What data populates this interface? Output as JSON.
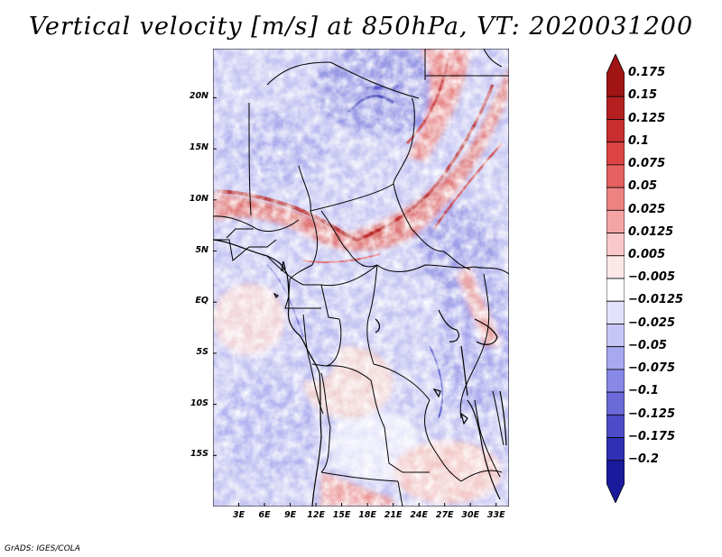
{
  "title": "Vertical velocity [m/s] at 850hPa, VT: 2020031200",
  "credit": "GrADS: IGES/COLA",
  "map": {
    "region": "Central Africa",
    "lat_labels": [
      "20N",
      "15N",
      "10N",
      "5N",
      "EQ",
      "5S",
      "10S",
      "15S"
    ],
    "lon_labels": [
      "3E",
      "6E",
      "9E",
      "12E",
      "15E",
      "18E",
      "21E",
      "24E",
      "27E",
      "30E",
      "33E"
    ],
    "lat_values": [
      20,
      15,
      10,
      5,
      0,
      -5,
      -10,
      -15
    ],
    "lon_values": [
      3,
      6,
      9,
      12,
      15,
      18,
      21,
      24,
      27,
      30,
      33
    ],
    "lat_range": [
      -20,
      24.8
    ],
    "lon_range": [
      0,
      34.5
    ]
  },
  "colorbar": {
    "labels": [
      "0.175",
      "0.15",
      "0.125",
      "0.1",
      "0.075",
      "0.05",
      "0.025",
      "0.0125",
      "0.005",
      "−0.005",
      "−0.0125",
      "−0.025",
      "−0.05",
      "−0.075",
      "−0.1",
      "−0.125",
      "−0.175",
      "−0.2"
    ],
    "colors": [
      "#a01414",
      "#b42020",
      "#c82e2e",
      "#dc4444",
      "#e66262",
      "#ee8282",
      "#f4a4a4",
      "#f9c8c8",
      "#fde8e8",
      "#ffffff",
      "#e2e2fc",
      "#c6c6f6",
      "#a8a8f0",
      "#8888e6",
      "#6a6ad8",
      "#4c4cc8",
      "#3030b4",
      "#1a1a9c"
    ]
  }
}
